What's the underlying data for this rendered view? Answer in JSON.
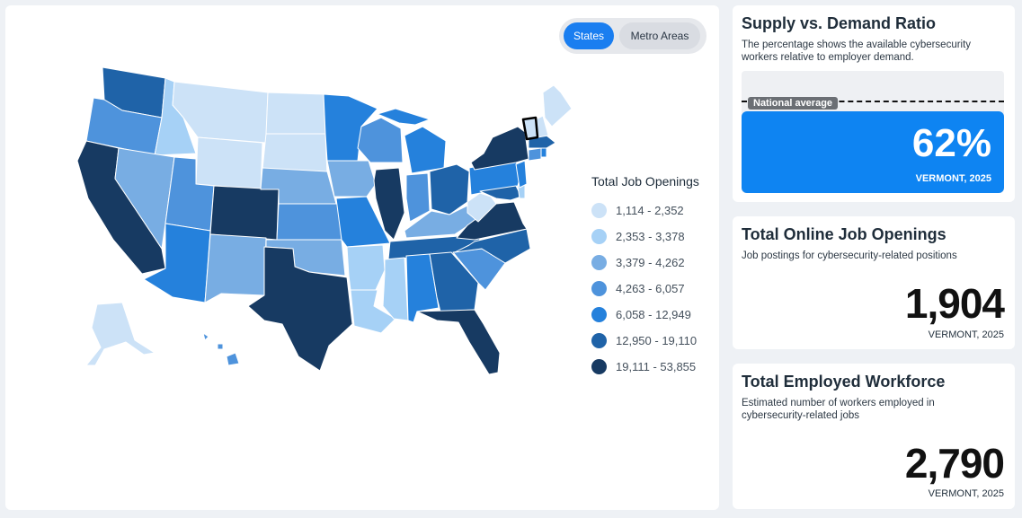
{
  "map_view": {
    "toggle": {
      "states_label": "States",
      "metro_label": "Metro Areas",
      "selected": "States"
    },
    "legend": {
      "title": "Total Job Openings",
      "bins": [
        {
          "label": "1,114 - 2,352",
          "color": "#cce2f7"
        },
        {
          "label": "2,353 - 3,378",
          "color": "#a6d1f6"
        },
        {
          "label": "3,379 - 4,262",
          "color": "#78ade3"
        },
        {
          "label": "4,263 - 6,057",
          "color": "#4e93dc"
        },
        {
          "label": "6,058 - 12,949",
          "color": "#2581dc"
        },
        {
          "label": "12,950 - 19,110",
          "color": "#1f63a8"
        },
        {
          "label": "19,111 - 53,855",
          "color": "#173a62"
        }
      ]
    },
    "selected_state": "Vermont"
  },
  "supply_demand": {
    "title": "Supply vs. Demand Ratio",
    "subtitle": "The percentage shows the available cybersecurity workers relative to employer demand.",
    "national_label": "National average",
    "ratio": 0.62,
    "national_avg_ratio": 0.76,
    "value_text": "62%",
    "location": "VERMONT, 2025"
  },
  "job_openings": {
    "title": "Total Online Job Openings",
    "subtitle": "Job postings for cybersecurity-related positions",
    "value": "1,904",
    "location": "VERMONT, 2025"
  },
  "workforce": {
    "title": "Total Employed Workforce",
    "subtitle": "Estimated number of workers employed in cybersecurity-related jobs",
    "value": "2,790",
    "location": "VERMONT, 2025"
  }
}
